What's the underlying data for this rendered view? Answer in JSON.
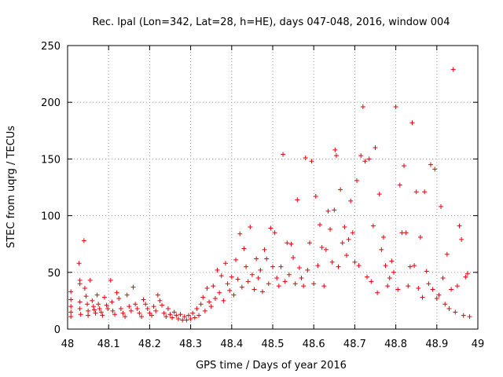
{
  "chart_data": {
    "type": "scatter",
    "title": "Rec. lpal (Lon=342, Lat=28, h=HE), days 047-048, 2016, window 004",
    "xlabel": "GPS time / Days of year 2016",
    "ylabel": "STEC from uqrg / TECUs",
    "xlim": [
      48,
      49
    ],
    "ylim": [
      0,
      250
    ],
    "xticks": [
      "48",
      "48.1",
      "48.2",
      "48.3",
      "48.4",
      "48.5",
      "48.6",
      "48.7",
      "48.8",
      "48.9",
      "49"
    ],
    "yticks": [
      "0",
      "50",
      "100",
      "150",
      "200",
      "250"
    ],
    "grid": true,
    "marker": "+",
    "color": "#e8000b",
    "series": [
      {
        "name": "",
        "points": [
          [
            48.008,
            33
          ],
          [
            48.008,
            26
          ],
          [
            48.008,
            20
          ],
          [
            48.008,
            15
          ],
          [
            48.008,
            11
          ],
          [
            48.028,
            58
          ],
          [
            48.03,
            43
          ],
          [
            48.03,
            40
          ],
          [
            48.03,
            24
          ],
          [
            48.03,
            18
          ],
          [
            48.032,
            13
          ],
          [
            48.04,
            78
          ],
          [
            48.042,
            36
          ],
          [
            48.045,
            29
          ],
          [
            48.048,
            22
          ],
          [
            48.05,
            16
          ],
          [
            48.05,
            12
          ],
          [
            48.055,
            43
          ],
          [
            48.06,
            25
          ],
          [
            48.063,
            20
          ],
          [
            48.065,
            17
          ],
          [
            48.068,
            14
          ],
          [
            48.072,
            30
          ],
          [
            48.075,
            22
          ],
          [
            48.078,
            18
          ],
          [
            48.082,
            15
          ],
          [
            48.085,
            12
          ],
          [
            48.09,
            28
          ],
          [
            48.095,
            21
          ],
          [
            48.098,
            18
          ],
          [
            48.105,
            43
          ],
          [
            48.108,
            24
          ],
          [
            48.11,
            16
          ],
          [
            48.115,
            13
          ],
          [
            48.12,
            32
          ],
          [
            48.125,
            27
          ],
          [
            48.13,
            18
          ],
          [
            48.135,
            14
          ],
          [
            48.14,
            11
          ],
          [
            48.145,
            30
          ],
          [
            48.15,
            20
          ],
          [
            48.155,
            16
          ],
          [
            48.16,
            37
          ],
          [
            48.165,
            22
          ],
          [
            48.17,
            18
          ],
          [
            48.175,
            14
          ],
          [
            48.18,
            11
          ],
          [
            48.185,
            26
          ],
          [
            48.19,
            22
          ],
          [
            48.195,
            18
          ],
          [
            48.2,
            14
          ],
          [
            48.205,
            12
          ],
          [
            48.21,
            20
          ],
          [
            48.215,
            16
          ],
          [
            48.22,
            30
          ],
          [
            48.225,
            25
          ],
          [
            48.23,
            21
          ],
          [
            48.235,
            14
          ],
          [
            48.24,
            11
          ],
          [
            48.245,
            18
          ],
          [
            48.25,
            13
          ],
          [
            48.255,
            10
          ],
          [
            48.26,
            15
          ],
          [
            48.265,
            12
          ],
          [
            48.27,
            9
          ],
          [
            48.275,
            13
          ],
          [
            48.28,
            8
          ],
          [
            48.285,
            11
          ],
          [
            48.29,
            8
          ],
          [
            48.295,
            12
          ],
          [
            48.3,
            9
          ],
          [
            48.305,
            14
          ],
          [
            48.31,
            10
          ],
          [
            48.315,
            18
          ],
          [
            48.32,
            12
          ],
          [
            48.325,
            22
          ],
          [
            48.33,
            28
          ],
          [
            48.335,
            16
          ],
          [
            48.34,
            36
          ],
          [
            48.345,
            24
          ],
          [
            48.35,
            20
          ],
          [
            48.355,
            38
          ],
          [
            48.36,
            27
          ],
          [
            48.365,
            52
          ],
          [
            48.37,
            32
          ],
          [
            48.375,
            47
          ],
          [
            48.38,
            25
          ],
          [
            48.385,
            58
          ],
          [
            48.39,
            40
          ],
          [
            48.395,
            34
          ],
          [
            48.4,
            46
          ],
          [
            48.405,
            30
          ],
          [
            48.41,
            61
          ],
          [
            48.415,
            44
          ],
          [
            48.42,
            84
          ],
          [
            48.425,
            37
          ],
          [
            48.43,
            71
          ],
          [
            48.435,
            55
          ],
          [
            48.44,
            42
          ],
          [
            48.445,
            90
          ],
          [
            48.45,
            48
          ],
          [
            48.455,
            35
          ],
          [
            48.46,
            62
          ],
          [
            48.465,
            45
          ],
          [
            48.47,
            52
          ],
          [
            48.475,
            33
          ],
          [
            48.48,
            70
          ],
          [
            48.485,
            62
          ],
          [
            48.49,
            40
          ],
          [
            48.495,
            89
          ],
          [
            48.5,
            55
          ],
          [
            48.505,
            85
          ],
          [
            48.51,
            45
          ],
          [
            48.515,
            38
          ],
          [
            48.52,
            55
          ],
          [
            48.525,
            154
          ],
          [
            48.53,
            42
          ],
          [
            48.535,
            76
          ],
          [
            48.54,
            48
          ],
          [
            48.545,
            75
          ],
          [
            48.55,
            63
          ],
          [
            48.555,
            40
          ],
          [
            48.56,
            114
          ],
          [
            48.565,
            54
          ],
          [
            48.57,
            45
          ],
          [
            48.575,
            38
          ],
          [
            48.58,
            151
          ],
          [
            48.585,
            52
          ],
          [
            48.59,
            76
          ],
          [
            48.595,
            148
          ],
          [
            48.6,
            40
          ],
          [
            48.605,
            117
          ],
          [
            48.61,
            56
          ],
          [
            48.615,
            92
          ],
          [
            48.62,
            72
          ],
          [
            48.625,
            38
          ],
          [
            48.63,
            70
          ],
          [
            48.635,
            104
          ],
          [
            48.64,
            88
          ],
          [
            48.645,
            59
          ],
          [
            48.65,
            105
          ],
          [
            48.652,
            158
          ],
          [
            48.655,
            153
          ],
          [
            48.66,
            55
          ],
          [
            48.665,
            123
          ],
          [
            48.67,
            76
          ],
          [
            48.675,
            90
          ],
          [
            48.68,
            65
          ],
          [
            48.685,
            79
          ],
          [
            48.69,
            113
          ],
          [
            48.695,
            85
          ],
          [
            48.7,
            59
          ],
          [
            48.705,
            131
          ],
          [
            48.71,
            56
          ],
          [
            48.715,
            153
          ],
          [
            48.72,
            196
          ],
          [
            48.725,
            148
          ],
          [
            48.73,
            46
          ],
          [
            48.735,
            150
          ],
          [
            48.74,
            42
          ],
          [
            48.745,
            91
          ],
          [
            48.75,
            160
          ],
          [
            48.755,
            32
          ],
          [
            48.76,
            119
          ],
          [
            48.765,
            70
          ],
          [
            48.77,
            81
          ],
          [
            48.775,
            56
          ],
          [
            48.78,
            38
          ],
          [
            48.785,
            45
          ],
          [
            48.79,
            60
          ],
          [
            48.795,
            50
          ],
          [
            48.8,
            196
          ],
          [
            48.805,
            35
          ],
          [
            48.81,
            127
          ],
          [
            48.815,
            85
          ],
          [
            48.82,
            144
          ],
          [
            48.825,
            85
          ],
          [
            48.83,
            38
          ],
          [
            48.835,
            55
          ],
          [
            48.84,
            182
          ],
          [
            48.845,
            56
          ],
          [
            48.85,
            121
          ],
          [
            48.855,
            36
          ],
          [
            48.86,
            81
          ],
          [
            48.865,
            28
          ],
          [
            48.87,
            121
          ],
          [
            48.875,
            51
          ],
          [
            48.88,
            40
          ],
          [
            48.885,
            145
          ],
          [
            48.89,
            35
          ],
          [
            48.895,
            141
          ],
          [
            48.9,
            27
          ],
          [
            48.905,
            30
          ],
          [
            48.91,
            108
          ],
          [
            48.915,
            45
          ],
          [
            48.92,
            22
          ],
          [
            48.925,
            66
          ],
          [
            48.93,
            18
          ],
          [
            48.935,
            35
          ],
          [
            48.94,
            229
          ],
          [
            48.945,
            15
          ],
          [
            48.95,
            38
          ],
          [
            48.955,
            91
          ],
          [
            48.96,
            79
          ],
          [
            48.965,
            12
          ],
          [
            48.97,
            46
          ],
          [
            48.975,
            49
          ],
          [
            48.98,
            11
          ]
        ]
      }
    ]
  }
}
